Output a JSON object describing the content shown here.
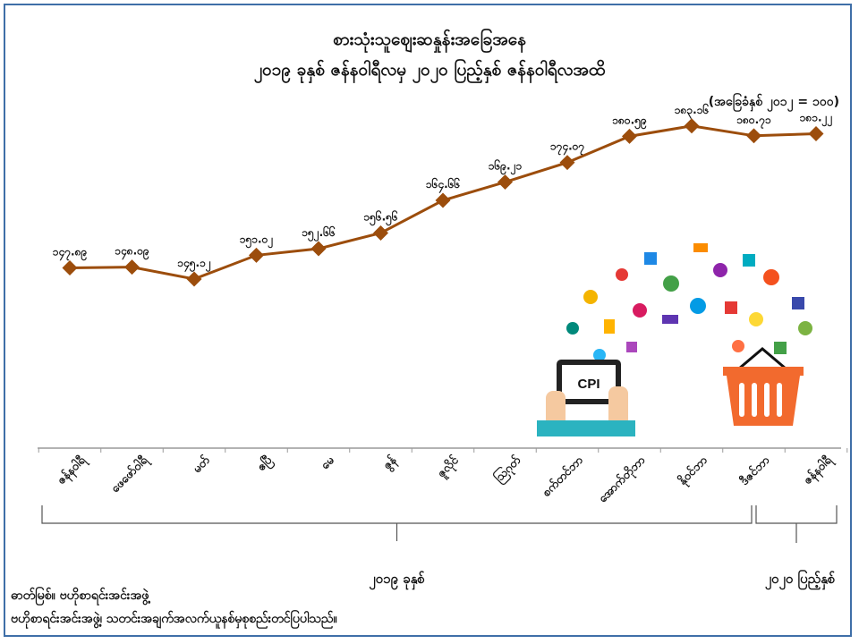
{
  "title": "စားသုံးသူဈေးဆနှုန်းအခြေအနေ",
  "subtitle": "၂၀၁၉ ခုနှစ် ဇန်နဝါရီလမှ ၂၀၂၀ ပြည့်နှစ် ဇန်နဝါရီလအထိ",
  "base_note": "(အခြေခံနှစ် ၂၀၁၂ = ၁၀၀)",
  "illustration_label": "CPI",
  "source_line1": "ဓာတ်မြစ်။ ဗဟိုစာရင်းအင်းအဖွဲ့",
  "source_line2": "ဗဟိုစာရင်းအင်းအဖွဲ့၊ သတင်းအချက်အလက်ယူနစ်မှစုစည်းတင်ပြပါသည်။",
  "year_groups": [
    {
      "label": "၂၀၁၉ ခုနှစ်"
    },
    {
      "label": "၂၀၂၀ ပြည့်နှစ်"
    }
  ],
  "chart_data": {
    "type": "line",
    "categories": [
      "ဇန်နဝါရီ",
      "ဖေဖော်ဝါရီ",
      "မတ်",
      "ဧပြီ",
      "မေ",
      "ဇွန်",
      "ဇူလိုင်",
      "ဩဂုတ်",
      "စက်တင်ဘာ",
      "အောက်တိုဘာ",
      "နိုဝင်ဘာ",
      "ဒီဇင်ဘာ",
      "ဇန်နဝါရီ"
    ],
    "values": [
      147.89,
      148.09,
      145.12,
      151.02,
      152.66,
      156.56,
      164.66,
      169.21,
      174.07,
      180.59,
      183.16,
      180.71,
      181.22
    ],
    "labels": [
      "၁၄၇.၈၉",
      "၁၄၈.၀၉",
      "၁၄၅.၁၂",
      "၁၅၁.၀၂",
      "၁၅၂.၆၆",
      "၁၅၆.၅၆",
      "၁၆၄.၆၆",
      "၁၆၉.၂၁",
      "၁၇၄.၀၇",
      "၁၈၀.၅၉",
      "၁၈၃.၁၆",
      "၁၈၀.၇၁",
      "၁၈၁.၂၂"
    ],
    "ylim": [
      110,
      190
    ],
    "color": "#9c4d0c",
    "grid": false,
    "legend": "none"
  }
}
